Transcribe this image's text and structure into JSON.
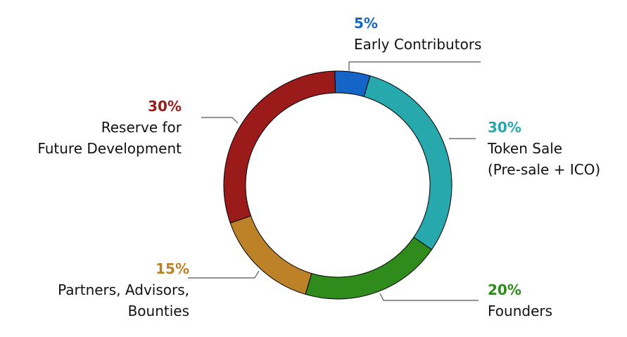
{
  "chart_data": {
    "type": "pie",
    "donut": true,
    "slices": [
      {
        "label": "Early Contributors",
        "value": 5,
        "display": "5%",
        "color": "#1565c8"
      },
      {
        "label": "Token Sale (Pre-sale + ICO)",
        "label_lines": [
          "Token Sale",
          "(Pre-sale + ICO)"
        ],
        "value": 30,
        "display": "30%",
        "color": "#26a8ad"
      },
      {
        "label": "Founders",
        "value": 20,
        "display": "20%",
        "color": "#2f8b1b"
      },
      {
        "label": "Partners, Advisors, Bounties",
        "label_lines": [
          "Partners, Advisors,",
          "Bounties"
        ],
        "value": 15,
        "display": "15%",
        "color": "#bd8227"
      },
      {
        "label": "Reserve for Future Development",
        "label_lines": [
          "Reserve for",
          "Future Development"
        ],
        "value": 30,
        "display": "30%",
        "color": "#9b1b1b"
      }
    ]
  }
}
